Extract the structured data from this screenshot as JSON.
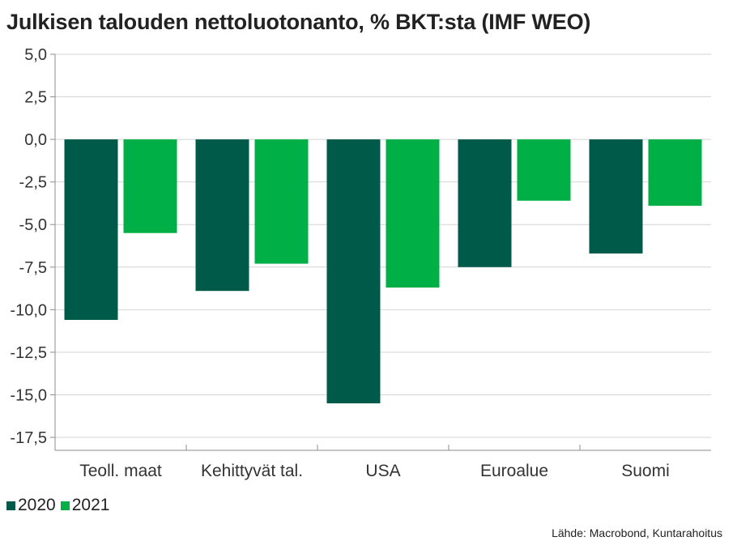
{
  "chart_data": {
    "type": "bar",
    "title": "Julkisen talouden nettoluotonanto, % BKT:sta (IMF WEO)",
    "categories": [
      "Teoll. maat",
      "Kehittyvät tal.",
      "USA",
      "Euroalue",
      "Suomi"
    ],
    "series": [
      {
        "name": "2020",
        "color": "#005a49",
        "values": [
          -10.6,
          -8.9,
          -15.5,
          -7.5,
          -6.7
        ]
      },
      {
        "name": "2021",
        "color": "#00b046",
        "values": [
          -5.5,
          -7.3,
          -8.7,
          -3.6,
          -3.9
        ]
      }
    ],
    "ylim": [
      -17.5,
      5.0
    ],
    "yticks": [
      "5,0",
      "2,5",
      "0,0",
      "-2,5",
      "-5,0",
      "-7,5",
      "-10,0",
      "-12,5",
      "-15,0",
      "-17,5"
    ],
    "grid": true,
    "legend_position": "bottom-left",
    "source": "Lähde: Macrobond, Kuntarahoitus"
  }
}
